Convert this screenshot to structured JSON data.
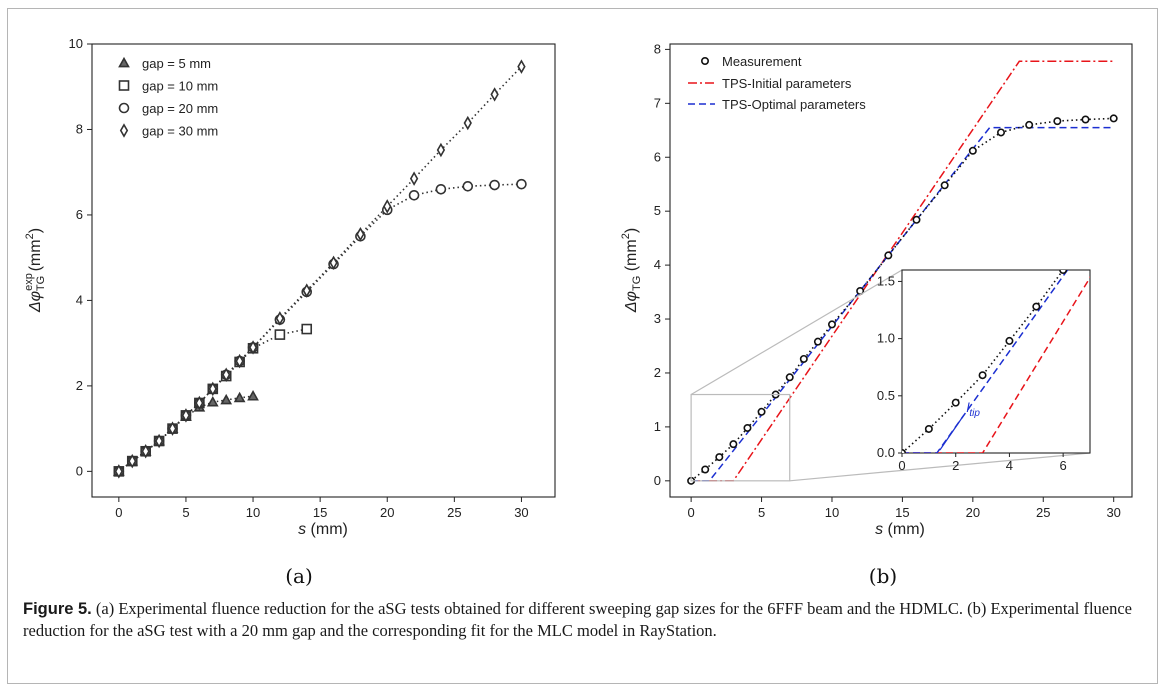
{
  "figure": {
    "label": "Figure 5.",
    "caption": "(a) Experimental fluence reduction for the aSG tests obtained for different sweeping gap sizes for the 6FFF beam and the HDMLC. (b) Experimental fluence reduction for the aSG test with a 20 mm gap and the corresponding fit for the MLC model in RayStation."
  },
  "panel_a": {
    "sublabel": "(a)",
    "xlabel_var": "s",
    "xlabel_unit": " (mm)",
    "ylabel_base": "Δφ",
    "ylabel_sup": "exp",
    "ylabel_sub": "TG",
    "ylabel_unit": " (mm",
    "ylabel_unit_sup": "2",
    "ylabel_close": ")"
  },
  "panel_b": {
    "sublabel": "(b)",
    "xlabel_var": "s",
    "xlabel_unit": " (mm)",
    "ylabel_base": "Δφ",
    "ylabel_sub": "TG",
    "ylabel_unit": " (mm",
    "ylabel_unit_sup": "2",
    "ylabel_close": ")",
    "inset_annotation": "l",
    "inset_annotation_sub": "tip"
  },
  "chart_data": [
    {
      "type": "scatter",
      "panel": "a",
      "xlabel": "s (mm)",
      "ylabel": "Δφ_TG^exp (mm²)",
      "xlim": [
        -2,
        32.5
      ],
      "ylim": [
        -0.6,
        10
      ],
      "xticks": [
        0,
        5,
        10,
        15,
        20,
        25,
        30
      ],
      "yticks": [
        0,
        2,
        4,
        6,
        8,
        10
      ],
      "legend_position": "top-left",
      "grid": false,
      "series": [
        {
          "name": "gap = 5 mm",
          "marker": "triangle",
          "x": [
            0,
            1,
            2,
            3,
            4,
            5,
            6,
            7,
            8,
            9,
            10
          ],
          "y": [
            0,
            0.24,
            0.47,
            0.71,
            1.0,
            1.28,
            1.5,
            1.62,
            1.67,
            1.72,
            1.76
          ]
        },
        {
          "name": "gap = 10 mm",
          "marker": "square",
          "x": [
            0,
            1,
            2,
            3,
            4,
            5,
            6,
            7,
            8,
            9,
            10,
            12,
            14
          ],
          "y": [
            0,
            0.24,
            0.47,
            0.71,
            1.0,
            1.31,
            1.6,
            1.93,
            2.23,
            2.56,
            2.88,
            3.2,
            3.33
          ]
        },
        {
          "name": "gap = 20 mm",
          "marker": "circle",
          "x": [
            0,
            1,
            2,
            3,
            4,
            5,
            6,
            7,
            8,
            9,
            10,
            12,
            14,
            16,
            18,
            20,
            22,
            24,
            26,
            28,
            30
          ],
          "y": [
            0,
            0.24,
            0.47,
            0.71,
            1.0,
            1.31,
            1.6,
            1.93,
            2.26,
            2.58,
            2.9,
            3.55,
            4.2,
            4.85,
            5.5,
            6.12,
            6.46,
            6.6,
            6.67,
            6.7,
            6.72
          ]
        },
        {
          "name": "gap = 30 mm",
          "marker": "diamond",
          "x": [
            0,
            1,
            2,
            3,
            4,
            5,
            6,
            7,
            8,
            9,
            10,
            12,
            14,
            16,
            18,
            20,
            22,
            24,
            26,
            28,
            30
          ],
          "y": [
            0,
            0.24,
            0.47,
            0.71,
            1.0,
            1.31,
            1.6,
            1.93,
            2.26,
            2.58,
            2.9,
            3.58,
            4.23,
            4.88,
            5.55,
            6.2,
            6.85,
            7.52,
            8.15,
            8.82,
            9.47
          ]
        }
      ]
    },
    {
      "type": "line",
      "panel": "b",
      "xlabel": "s (mm)",
      "ylabel": "Δφ_TG (mm²)",
      "xlim": [
        -1.5,
        31.3
      ],
      "ylim": [
        -0.3,
        8.1
      ],
      "xticks": [
        0,
        5,
        10,
        15,
        20,
        25,
        30
      ],
      "yticks": [
        0,
        1,
        2,
        3,
        4,
        5,
        6,
        7,
        8
      ],
      "legend_position": "top-left",
      "grid": false,
      "series": [
        {
          "name": "Measurement",
          "style": "circles-dotted",
          "x": [
            0,
            1,
            2,
            3,
            4,
            5,
            6,
            7,
            8,
            9,
            10,
            12,
            14,
            16,
            18,
            20,
            22,
            24,
            26,
            28,
            30
          ],
          "y": [
            0,
            0.21,
            0.44,
            0.68,
            0.98,
            1.28,
            1.6,
            1.92,
            2.26,
            2.58,
            2.9,
            3.52,
            4.18,
            4.84,
            5.48,
            6.12,
            6.46,
            6.6,
            6.67,
            6.7,
            6.72
          ]
        },
        {
          "name": "TPS-Initial parameters",
          "style": "dash-dot",
          "color": "#e8141a",
          "x": [
            0,
            3,
            23.3,
            30
          ],
          "y": [
            0,
            0,
            7.78,
            7.78
          ]
        },
        {
          "name": "TPS-Optimal parameters",
          "style": "dashed",
          "color": "#1b2fd1",
          "x": [
            0,
            1.3,
            21.2,
            30
          ],
          "y": [
            0,
            0,
            6.55,
            6.55
          ]
        }
      ],
      "inset": {
        "xlim": [
          0,
          7
        ],
        "ylim": [
          0,
          1.6
        ],
        "xticks": [
          0,
          2,
          4,
          6
        ],
        "yticks": [
          0.0,
          0.5,
          1.0,
          1.5
        ],
        "annotation": "l_tip",
        "zoom_region": {
          "x": [
            0,
            7
          ],
          "y": [
            0,
            1.6
          ]
        }
      }
    }
  ]
}
